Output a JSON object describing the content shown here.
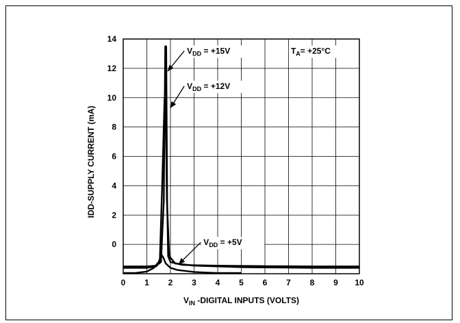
{
  "chart_data": {
    "type": "line",
    "title": "",
    "xlabel": {
      "main": "V",
      "sub": "IN",
      "rest": " -DIGITAL INPUTS (VOLTS)"
    },
    "ylabel": "IDD-SUPPLY CURRENT (mA)",
    "xlim": [
      0,
      10
    ],
    "ylim": [
      -2,
      14
    ],
    "x_ticks": [
      "0",
      "1",
      "2",
      "3",
      "4",
      "5",
      "6",
      "7",
      "8",
      "9",
      "10"
    ],
    "y_ticks": [
      "0",
      "2",
      "4",
      "6",
      "8",
      "10",
      "12",
      "14"
    ],
    "grid": true,
    "series": [
      {
        "name": "VDD = +15V",
        "x": [
          0,
          1,
          1.4,
          1.6,
          1.72,
          1.78,
          1.82,
          1.86,
          1.9,
          2.0,
          2.5,
          3,
          4,
          5,
          6,
          7,
          8,
          9,
          10
        ],
        "y": [
          -1.5,
          -1.5,
          -1.45,
          -1.2,
          3.0,
          13.5,
          13.5,
          3.0,
          -0.8,
          -1.2,
          -1.4,
          -1.42,
          -1.45,
          -1.47,
          -1.48,
          -1.49,
          -1.5,
          -1.5,
          -1.5
        ]
      },
      {
        "name": "VDD = +12V",
        "x": [
          0,
          1,
          1.4,
          1.55,
          1.65,
          1.75,
          1.8,
          1.85,
          1.95,
          2.2,
          3,
          4,
          5,
          6,
          7,
          8,
          9,
          10
        ],
        "y": [
          -1.6,
          -1.6,
          -1.5,
          -1.1,
          4.0,
          10.0,
          9.8,
          3.0,
          -0.8,
          -1.3,
          -1.45,
          -1.5,
          -1.55,
          -1.57,
          -1.58,
          -1.6,
          -1.6,
          -1.6
        ]
      },
      {
        "name": "VDD = +5V",
        "x": [
          0,
          0.5,
          1.0,
          1.3,
          1.5,
          1.62,
          1.7,
          1.8,
          2.0,
          2.3,
          3,
          3.5,
          4,
          5
        ],
        "y": [
          -1.95,
          -1.95,
          -1.85,
          -1.6,
          -1.2,
          -0.7,
          -0.9,
          -1.3,
          -1.6,
          -1.75,
          -1.88,
          -1.92,
          -1.95,
          -1.95
        ]
      }
    ],
    "annotations": [
      {
        "main": "V",
        "sub": "DD",
        "rest": " = +15V",
        "x": 2.7,
        "y": 13.0,
        "arrow_to": [
          1.88,
          11.8
        ]
      },
      {
        "main": "V",
        "sub": "DD",
        "rest": " = +12V",
        "x": 2.7,
        "y": 10.6,
        "arrow_to": [
          2.0,
          9.3
        ]
      },
      {
        "main": "V",
        "sub": "DD",
        "rest": " = +5V",
        "x": 3.4,
        "y": -0.05,
        "arrow_to": [
          2.35,
          -1.35
        ]
      },
      {
        "main": "T",
        "sub": "A",
        "rest": "= +25°C",
        "x": 7.1,
        "y": 13.0,
        "arrow_to": null
      }
    ]
  }
}
